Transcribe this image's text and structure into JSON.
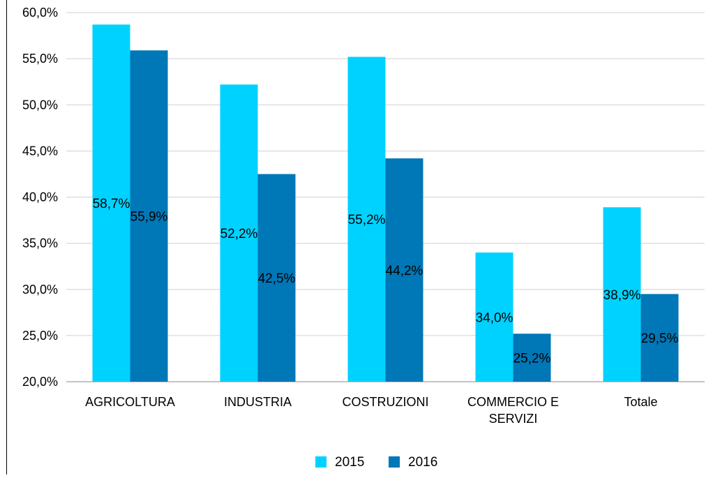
{
  "chart_data": {
    "type": "bar",
    "title": "",
    "xlabel": "",
    "ylabel": "",
    "categories": [
      "AGRICOLTURA",
      "INDUSTRIA",
      "COSTRUZIONI",
      "COMMERCIO E SERVIZI",
      "Totale"
    ],
    "category_lines": [
      [
        "AGRICOLTURA"
      ],
      [
        "INDUSTRIA"
      ],
      [
        "COSTRUZIONI"
      ],
      [
        "COMMERCIO E",
        "SERVIZI"
      ],
      [
        "Totale"
      ]
    ],
    "series": [
      {
        "name": "2015",
        "color": "#00d2ff",
        "values": [
          58.7,
          52.2,
          55.2,
          34.0,
          38.9
        ],
        "labels": [
          "58,7%",
          "52,2%",
          "55,2%",
          "34,0%",
          "38,9%"
        ]
      },
      {
        "name": "2016",
        "color": "#0077b6",
        "values": [
          55.9,
          42.5,
          44.2,
          25.2,
          29.5
        ],
        "labels": [
          "55,9%",
          "42,5%",
          "44,2%",
          "25,2%",
          "29,5%"
        ]
      }
    ],
    "ylim": [
      20,
      60
    ],
    "yticks": [
      20,
      25,
      30,
      35,
      40,
      45,
      50,
      55,
      60
    ],
    "ytick_labels": [
      "20,0%",
      "25,0%",
      "30,0%",
      "35,0%",
      "40,0%",
      "45,0%",
      "50,0%",
      "55,0%",
      "60,0%"
    ],
    "grid": true,
    "legend_position": "bottom-center"
  }
}
